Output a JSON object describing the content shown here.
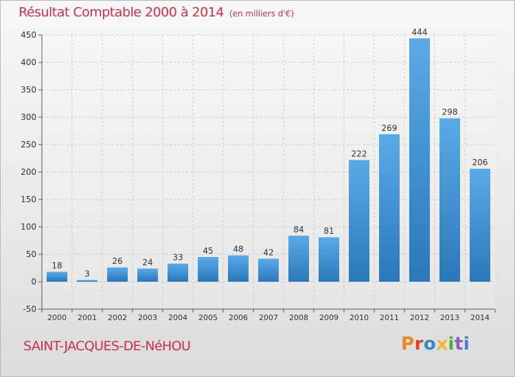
{
  "header": {
    "title": "Résultat Comptable 2000 à 2014",
    "subtitle": "(en milliers d'€)"
  },
  "footer": {
    "commune": "SAINT-JACQUES-DE-NéHOU",
    "logo_text": "Proxiti"
  },
  "colors": {
    "title": "#cc2f4a",
    "bar_top": "#5aaae8",
    "bar_bottom": "#2a78b8",
    "logo": [
      "#e8862a",
      "#d9452b",
      "#3a86c9",
      "#f2b52b",
      "#5aa83a",
      "#8a5cc0",
      "#3a86c9"
    ]
  },
  "chart_data": {
    "type": "bar",
    "title": "Résultat Comptable 2000 à 2014",
    "subtitle": "(en milliers d'€)",
    "xlabel": "",
    "ylabel": "",
    "categories": [
      "2000",
      "2001",
      "2002",
      "2003",
      "2004",
      "2005",
      "2006",
      "2007",
      "2008",
      "2009",
      "2010",
      "2011",
      "2012",
      "2013",
      "2014"
    ],
    "values": [
      18,
      3,
      26,
      24,
      33,
      45,
      48,
      42,
      84,
      81,
      222,
      269,
      444,
      298,
      206
    ],
    "ylim": [
      -50,
      450
    ],
    "yticks": [
      -50,
      0,
      50,
      100,
      150,
      200,
      250,
      300,
      350,
      400,
      450
    ],
    "grid": true,
    "legend": "none"
  }
}
